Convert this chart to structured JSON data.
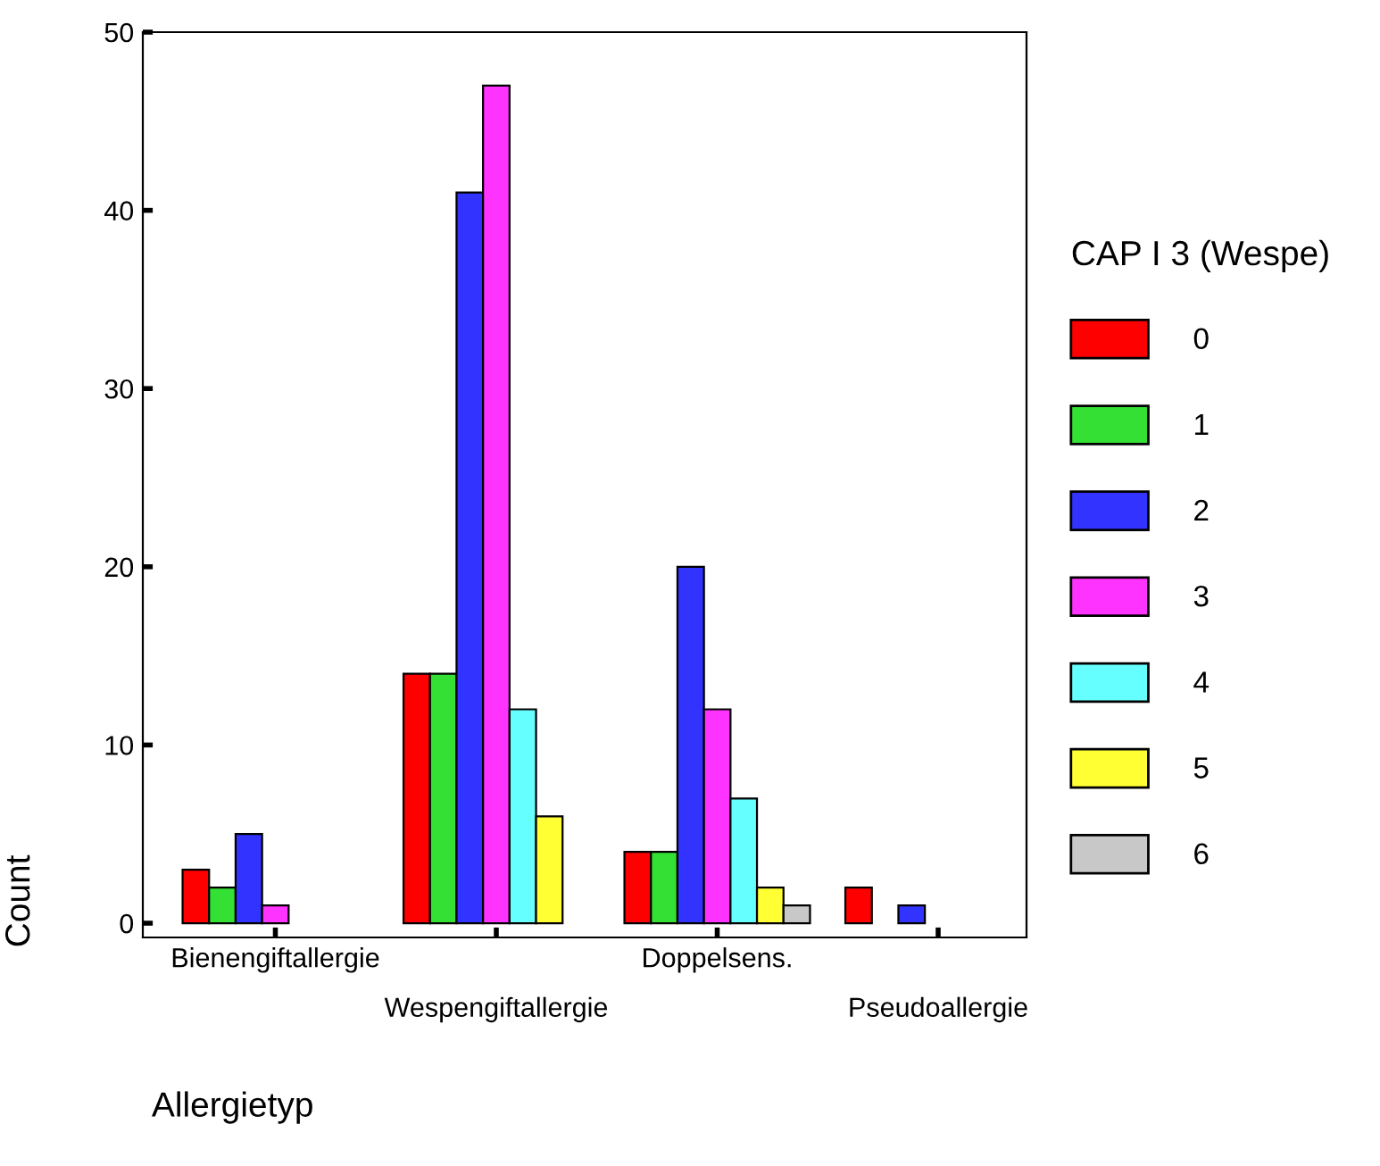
{
  "chart_data": {
    "type": "bar",
    "xlabel": "Allergietyp",
    "ylabel": "Count",
    "legend_title": "CAP I 3 (Wespe)",
    "categories": [
      "Bienengiftallergie",
      "Wespengiftallergie",
      "Doppelsens.",
      "Pseudoallergie"
    ],
    "series": [
      {
        "name": "0",
        "color": "#ff0000",
        "values": [
          3,
          14,
          4,
          2
        ]
      },
      {
        "name": "1",
        "color": "#33e033",
        "values": [
          2,
          14,
          4,
          null
        ]
      },
      {
        "name": "2",
        "color": "#3333ff",
        "values": [
          5,
          41,
          20,
          1
        ]
      },
      {
        "name": "3",
        "color": "#ff33ff",
        "values": [
          1,
          47,
          12,
          null
        ]
      },
      {
        "name": "4",
        "color": "#66ffff",
        "values": [
          null,
          12,
          7,
          null
        ]
      },
      {
        "name": "5",
        "color": "#ffff33",
        "values": [
          null,
          6,
          2,
          null
        ]
      },
      {
        "name": "6",
        "color": "#c8c8c8",
        "values": [
          null,
          null,
          1,
          null
        ]
      }
    ],
    "ylim": [
      -0.8,
      50
    ],
    "yticks": [
      0,
      10,
      20,
      30,
      40,
      50
    ],
    "grid": false,
    "legend": "right"
  }
}
